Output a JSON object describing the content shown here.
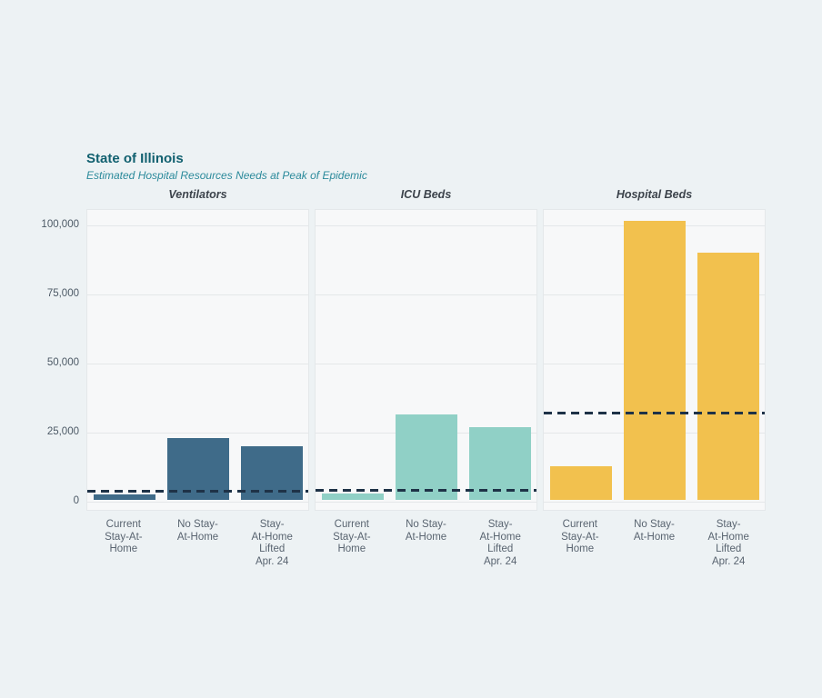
{
  "page": {
    "background": "#edf2f4"
  },
  "header": {
    "title": "State of Illinois",
    "subtitle": "Estimated Hospital Resources Needs at Peak of Epidemic",
    "title_color": "#11606f",
    "subtitle_color": "#2b8a9b"
  },
  "chart_data": {
    "type": "bar",
    "title": "State of Illinois",
    "subtitle": "Estimated Hospital Resources Needs at Peak of Epidemic",
    "xlabel": "",
    "ylabel": "",
    "grid": true,
    "ylim": [
      0,
      105000
    ],
    "y_ticks": [
      0,
      25000,
      50000,
      75000,
      100000
    ],
    "y_tick_labels": [
      "0",
      "25,000",
      "50,000",
      "75,000",
      "100,000"
    ],
    "categories": [
      [
        "Current",
        "Stay-At-",
        "Home"
      ],
      [
        "No Stay-",
        "At-Home"
      ],
      [
        "Stay-",
        "At-Home",
        "Lifted",
        "Apr. 24"
      ]
    ],
    "capacity_line_color": "#1e3247",
    "panels": [
      {
        "title": "Ventilators",
        "bar_color": "#3f6b89",
        "capacity_line": 3200,
        "values": [
          2000,
          22500,
          19500
        ]
      },
      {
        "title": "ICU Beds",
        "bar_color": "#90d0c6",
        "capacity_line": 3600,
        "values": [
          2300,
          31000,
          26300
        ]
      },
      {
        "title": "Hospital Beds",
        "bar_color": "#f2c14e",
        "capacity_line": 31500,
        "values": [
          12200,
          101000,
          89500
        ]
      }
    ]
  }
}
